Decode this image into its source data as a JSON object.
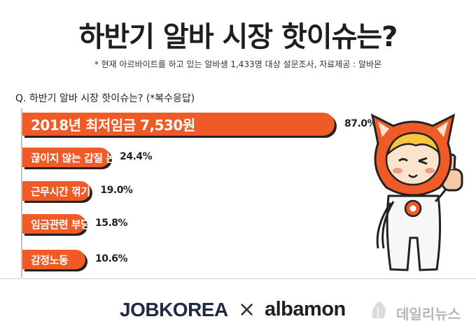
{
  "title": "하반기 알바 시장 핫이슈는?",
  "subtitle": "* 현재 아르바이트를 하고 있는 알바생 1,433명 대상 설문조사, 자료제공 : 알바몬",
  "question": "Q. 하반기 알바 시장 핫이슈는? (*복수응답)",
  "chart_data": {
    "type": "bar",
    "orientation": "horizontal",
    "categories": [
      "2018년 최저임금 7,530원",
      "끊이지 않는 갑질 논란",
      "근무시간 꺾기 등 꼼수",
      "임금관련 부당대우",
      "감정노동"
    ],
    "values": [
      87.0,
      24.4,
      19.0,
      15.8,
      10.6
    ],
    "value_labels": [
      "87.0%",
      "24.4%",
      "19.0%",
      "15.8%",
      "10.6%"
    ],
    "unit": "%",
    "xlim": [
      0,
      100
    ],
    "bar_color": "#f05a26"
  },
  "footer": {
    "logo_left": "JOBKOREA",
    "separator": "×",
    "logo_right": "albamon",
    "watermark": "데일리뉴스"
  },
  "colors": {
    "accent": "#f05a26",
    "text": "#1e1e1e"
  }
}
